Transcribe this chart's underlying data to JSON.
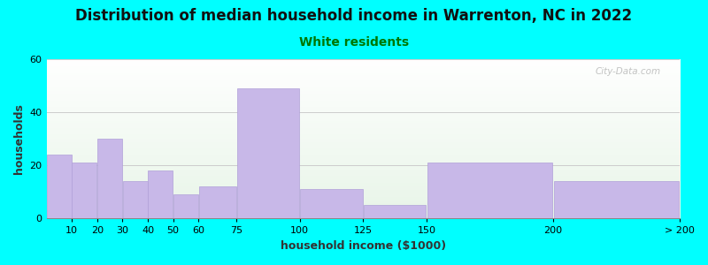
{
  "title": "Distribution of median household income in Warrenton, NC in 2022",
  "subtitle": "White residents",
  "xlabel": "household income ($1000)",
  "ylabel": "households",
  "background_color": "#00FFFF",
  "bar_color": "#c8b8e8",
  "bar_edge_color": "#b0a0d8",
  "ylim": [
    0,
    60
  ],
  "yticks": [
    0,
    20,
    40,
    60
  ],
  "tick_labels": [
    "10",
    "20",
    "30",
    "40",
    "50",
    "60",
    "75",
    "100",
    "125",
    "150",
    "200",
    "> 200"
  ],
  "tick_positions": [
    10,
    20,
    30,
    40,
    50,
    60,
    75,
    100,
    125,
    150,
    200,
    250
  ],
  "bar_lefts": [
    0,
    10,
    20,
    30,
    40,
    50,
    60,
    75,
    100,
    125,
    150,
    200
  ],
  "bar_rights": [
    10,
    20,
    30,
    40,
    50,
    60,
    75,
    100,
    125,
    150,
    200,
    250
  ],
  "values": [
    24,
    21,
    30,
    14,
    18,
    9,
    12,
    49,
    11,
    5,
    21,
    14
  ],
  "title_fontsize": 12,
  "subtitle_fontsize": 10,
  "subtitle_color": "#007700",
  "axis_label_fontsize": 9,
  "tick_fontsize": 8,
  "watermark_text": "City-Data.com",
  "watermark_color": "#aaaaaa",
  "grid_color": "#cccccc",
  "spine_color": "#888888"
}
